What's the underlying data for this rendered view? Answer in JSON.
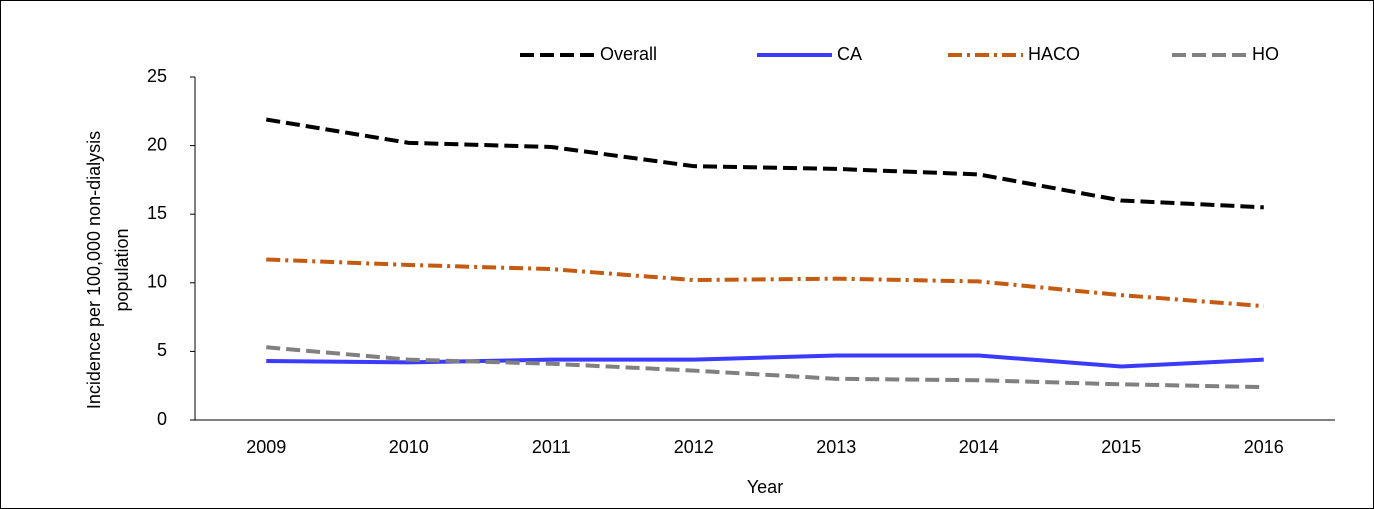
{
  "chart_data": {
    "type": "line",
    "x_label": "Year",
    "y_label": [
      "Incidence per 100,000 non-dialysis",
      "population"
    ],
    "categories": [
      "2009",
      "2010",
      "2011",
      "2012",
      "2013",
      "2014",
      "2015",
      "2016"
    ],
    "series": [
      {
        "name": "Overall",
        "color": "#000000",
        "dash": "dashed",
        "values": [
          21.9,
          20.2,
          19.9,
          18.5,
          18.3,
          17.9,
          16.0,
          15.5
        ]
      },
      {
        "name": "CA",
        "color": "#3b3bff",
        "dash": "solid",
        "values": [
          4.3,
          4.2,
          4.4,
          4.4,
          4.7,
          4.7,
          3.9,
          4.4
        ]
      },
      {
        "name": "HACO",
        "color": "#c55a11",
        "dash": "dash-dot",
        "values": [
          11.7,
          11.3,
          11.0,
          10.2,
          10.3,
          10.1,
          9.1,
          8.3
        ]
      },
      {
        "name": "HO",
        "color": "#808080",
        "dash": "dashed",
        "values": [
          5.3,
          4.4,
          4.1,
          3.6,
          3.0,
          2.9,
          2.6,
          2.4
        ]
      }
    ],
    "ylim": [
      0,
      25
    ],
    "yticks": [
      0,
      5,
      10,
      15,
      20,
      25
    ],
    "grid": false,
    "legend": "top"
  }
}
